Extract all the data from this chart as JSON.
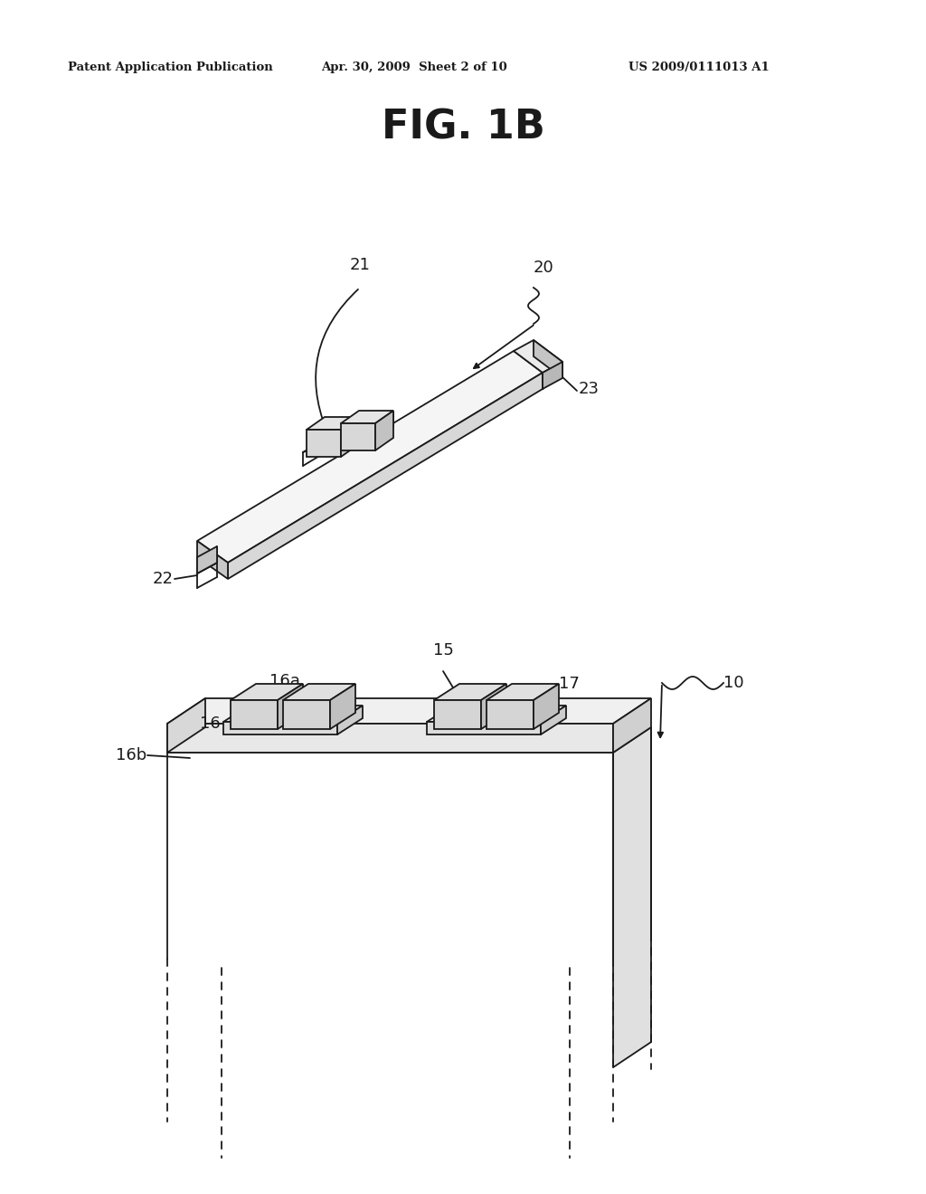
{
  "bg_color": "#ffffff",
  "header_left": "Patent Application Publication",
  "header_mid": "Apr. 30, 2009  Sheet 2 of 10",
  "header_right": "US 2009/0111013 A1",
  "fig_title": "FIG. 1B",
  "line_color": "#1a1a1a"
}
